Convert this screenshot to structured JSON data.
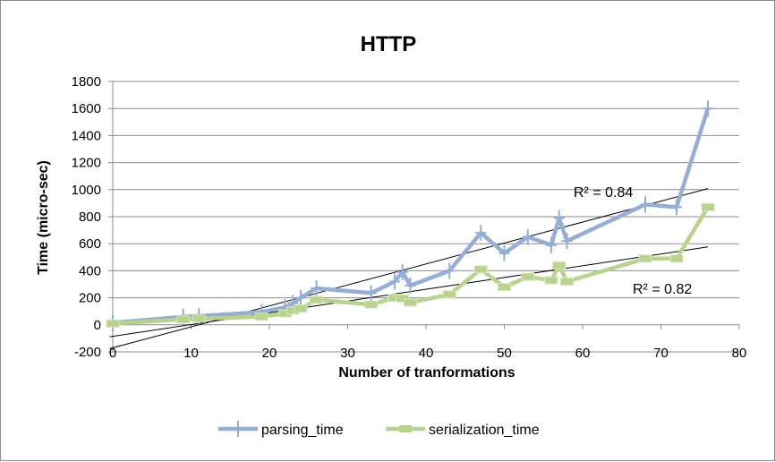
{
  "chart_data": {
    "type": "line",
    "title": "HTTP",
    "xlabel": "Number of tranformations",
    "ylabel": "Time  (micro-sec)",
    "xlim": [
      0,
      80
    ],
    "ylim": [
      -200,
      1800
    ],
    "x_ticks": [
      0,
      10,
      20,
      30,
      40,
      50,
      60,
      70,
      80
    ],
    "y_ticks": [
      -200,
      0,
      200,
      400,
      600,
      800,
      1000,
      1200,
      1400,
      1600,
      1800
    ],
    "grid": "horizontal",
    "legend": "bottom",
    "series": [
      {
        "name": "parsing_time",
        "color": "#94aed6",
        "points": [
          [
            0,
            15
          ],
          [
            9,
            60
          ],
          [
            11,
            65
          ],
          [
            19,
            95
          ],
          [
            22,
            130
          ],
          [
            23,
            160
          ],
          [
            24,
            200
          ],
          [
            26,
            270
          ],
          [
            33,
            235
          ],
          [
            36,
            320
          ],
          [
            37,
            390
          ],
          [
            38,
            290
          ],
          [
            43,
            400
          ],
          [
            47,
            680
          ],
          [
            50,
            530
          ],
          [
            53,
            650
          ],
          [
            56,
            590
          ],
          [
            57,
            790
          ],
          [
            58,
            620
          ],
          [
            68,
            890
          ],
          [
            72,
            870
          ],
          [
            76,
            1600
          ]
        ],
        "trendline": {
          "slope": 15.5,
          "intercept": -170,
          "r2_label": "R² = 0.84"
        }
      },
      {
        "name": "serialization_time",
        "color": "#b9d38c",
        "points": [
          [
            0,
            10
          ],
          [
            9,
            40
          ],
          [
            11,
            45
          ],
          [
            19,
            60
          ],
          [
            22,
            85
          ],
          [
            23,
            105
          ],
          [
            24,
            120
          ],
          [
            26,
            185
          ],
          [
            33,
            150
          ],
          [
            36,
            200
          ],
          [
            37,
            195
          ],
          [
            38,
            165
          ],
          [
            43,
            225
          ],
          [
            47,
            410
          ],
          [
            50,
            280
          ],
          [
            53,
            355
          ],
          [
            56,
            330
          ],
          [
            57,
            440
          ],
          [
            58,
            320
          ],
          [
            68,
            490
          ],
          [
            72,
            490
          ],
          [
            76,
            870
          ]
        ],
        "trendline": {
          "slope": 8.7,
          "intercept": -85,
          "r2_label": "R² = 0.82"
        }
      }
    ]
  }
}
